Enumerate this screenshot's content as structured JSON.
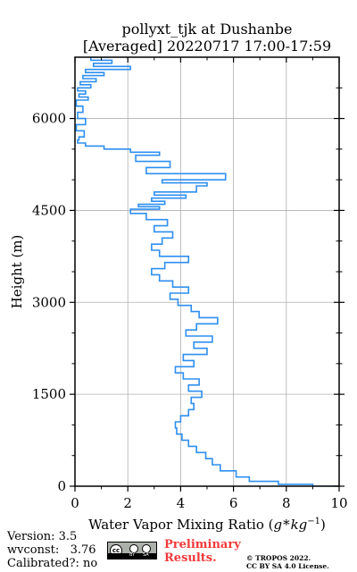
{
  "chart_data": {
    "type": "line",
    "title_line1": "pollyxt_tjk at Dushanbe",
    "title_line2": "[Averaged] 20220717 17:00-17:59",
    "xlabel_text": "Water Vapor Mixing Ratio (",
    "xlabel_unit_g": "g",
    "xlabel_unit_star": "*",
    "xlabel_unit_kg": "kg",
    "xlabel_unit_exp": "−1",
    "xlabel_close": ")",
    "ylabel": "Height (m)",
    "xlim": [
      0,
      10
    ],
    "ylim": [
      0,
      7000
    ],
    "xticks": [
      0,
      2,
      4,
      6,
      8,
      10
    ],
    "yticks": [
      0,
      1500,
      3000,
      4500,
      6000
    ],
    "grid": true,
    "line_color": "#2e8ff0",
    "series": [
      {
        "x": [
          10.0,
          9.0,
          7.7,
          6.6,
          6.1,
          5.5,
          5.2,
          4.95,
          4.6,
          4.3,
          4.05,
          3.85,
          3.8,
          4.0,
          4.3,
          4.5,
          4.4,
          4.8,
          4.3,
          4.7,
          4.1,
          3.8,
          4.5,
          4.1,
          5.0,
          4.5,
          5.2,
          4.2,
          4.6,
          5.4,
          4.7,
          4.4,
          3.9,
          3.6,
          4.3,
          3.7,
          3.2,
          2.9,
          3.4,
          4.3,
          3.2,
          2.9,
          3.3,
          3.7,
          3.0,
          3.5,
          2.7,
          2.1,
          3.2,
          2.4,
          3.4,
          2.9,
          4.2,
          3.0,
          4.6,
          5.0,
          3.3,
          5.7,
          2.7,
          3.6,
          2.3,
          3.2,
          2.1,
          1.1,
          0.4,
          0.1,
          0.15,
          0.35,
          0.05,
          0.4,
          0.1,
          0.3,
          0.05,
          0.5,
          0.15,
          0.4,
          0.1,
          0.6,
          0.2,
          0.8,
          0.3,
          1.1,
          0.4,
          2.1,
          0.7,
          1.4,
          0.6,
          1.3,
          0.2,
          1.0,
          2.7
        ],
        "y": [
          0,
          30,
          80,
          150,
          250,
          350,
          450,
          550,
          650,
          750,
          850,
          950,
          1050,
          1150,
          1250,
          1350,
          1450,
          1550,
          1650,
          1750,
          1850,
          1950,
          2050,
          2150,
          2250,
          2350,
          2450,
          2550,
          2650,
          2750,
          2850,
          2950,
          3050,
          3150,
          3250,
          3350,
          3450,
          3550,
          3650,
          3750,
          3850,
          3950,
          4050,
          4150,
          4250,
          4350,
          4450,
          4520,
          4560,
          4600,
          4650,
          4700,
          4750,
          4800,
          4900,
          4950,
          5000,
          5100,
          5200,
          5300,
          5400,
          5450,
          5500,
          5550,
          5600,
          5650,
          5700,
          5800,
          5900,
          6000,
          6100,
          6200,
          6300,
          6350,
          6400,
          6450,
          6500,
          6550,
          6600,
          6650,
          6700,
          6750,
          6800,
          6850,
          6900,
          6950,
          7000,
          7050,
          7100,
          7150,
          7200
        ]
      }
    ]
  },
  "footer": {
    "version_line": "Version: 3.5",
    "wvconst_line": "wvconst:   3.76",
    "calibrated_line": "Calibrated?: no",
    "prelim_line1": "Preliminary",
    "prelim_line2": "Results.",
    "copyright_line1": "© TROPOS 2022.",
    "copyright_line2": "CC BY SA 4.0 License.",
    "cc_badge_text": "cc",
    "cc_by_text": "BY",
    "cc_sa_text": "SA"
  }
}
